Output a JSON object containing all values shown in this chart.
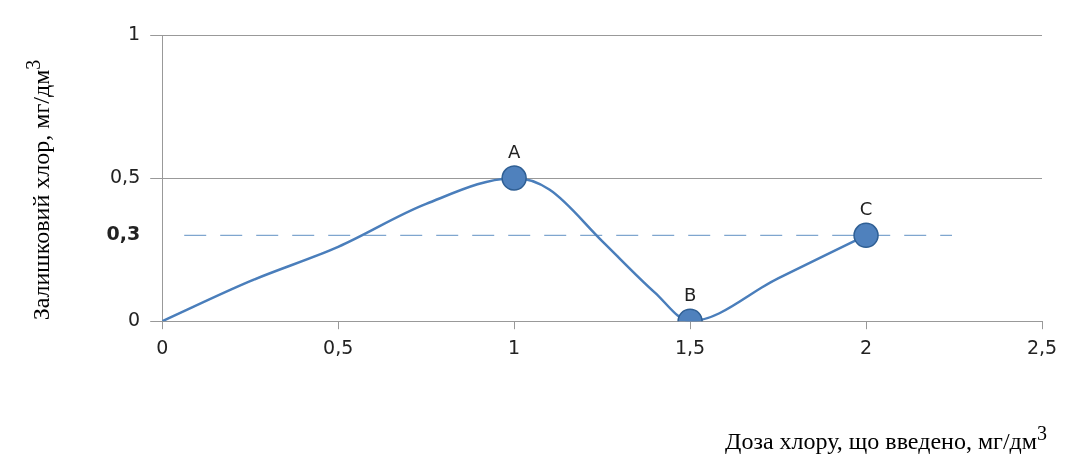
{
  "chart_data": {
    "type": "line",
    "xlabel": "Доза хлору, що введено, мг/дм$^{3}$",
    "ylabel": "Залишковий хлор, мг/дм$^{3}$",
    "xlim": [
      0,
      2.5
    ],
    "ylim": [
      0,
      1
    ],
    "xticks": [
      0,
      {
        "value": 0.5,
        "label": "0,5"
      },
      1,
      {
        "value": 1.5,
        "label": "1,5"
      },
      2,
      {
        "value": 2.5,
        "label": "2,5"
      }
    ],
    "yticks": [
      0,
      {
        "value": 0.5,
        "label": "0,5"
      },
      1
    ],
    "grid": "y",
    "legend": false,
    "line_style": "solid",
    "series": [
      {
        "color": "#4a7ebb",
        "marker": "none",
        "x": [
          0,
          0.25,
          0.5,
          0.75,
          1,
          1.1,
          1.25,
          1.4,
          1.5,
          1.75,
          2
        ],
        "values": [
          0,
          0.14,
          0.26,
          0.41,
          0.5,
          0.46,
          0.28,
          0.1,
          0,
          0.15,
          0.3
        ]
      },
      {
        "type": "scatter",
        "color": "#4f81bd",
        "marker": "circle",
        "x": [
          1,
          1.5,
          2
        ],
        "values": [
          0.5,
          0,
          0.3
        ]
      }
    ],
    "ref_lines": [
      {
        "axis": "y",
        "value": 0.3,
        "label": "0,3",
        "color": "#7fa6cf",
        "line_style": "dashed"
      }
    ],
    "annotations": [
      {
        "text": "A",
        "x": 1,
        "y": 0.5
      },
      {
        "text": "B",
        "x": 1.5,
        "y": 0
      },
      {
        "text": "C",
        "x": 2,
        "y": 0.3
      }
    ]
  }
}
